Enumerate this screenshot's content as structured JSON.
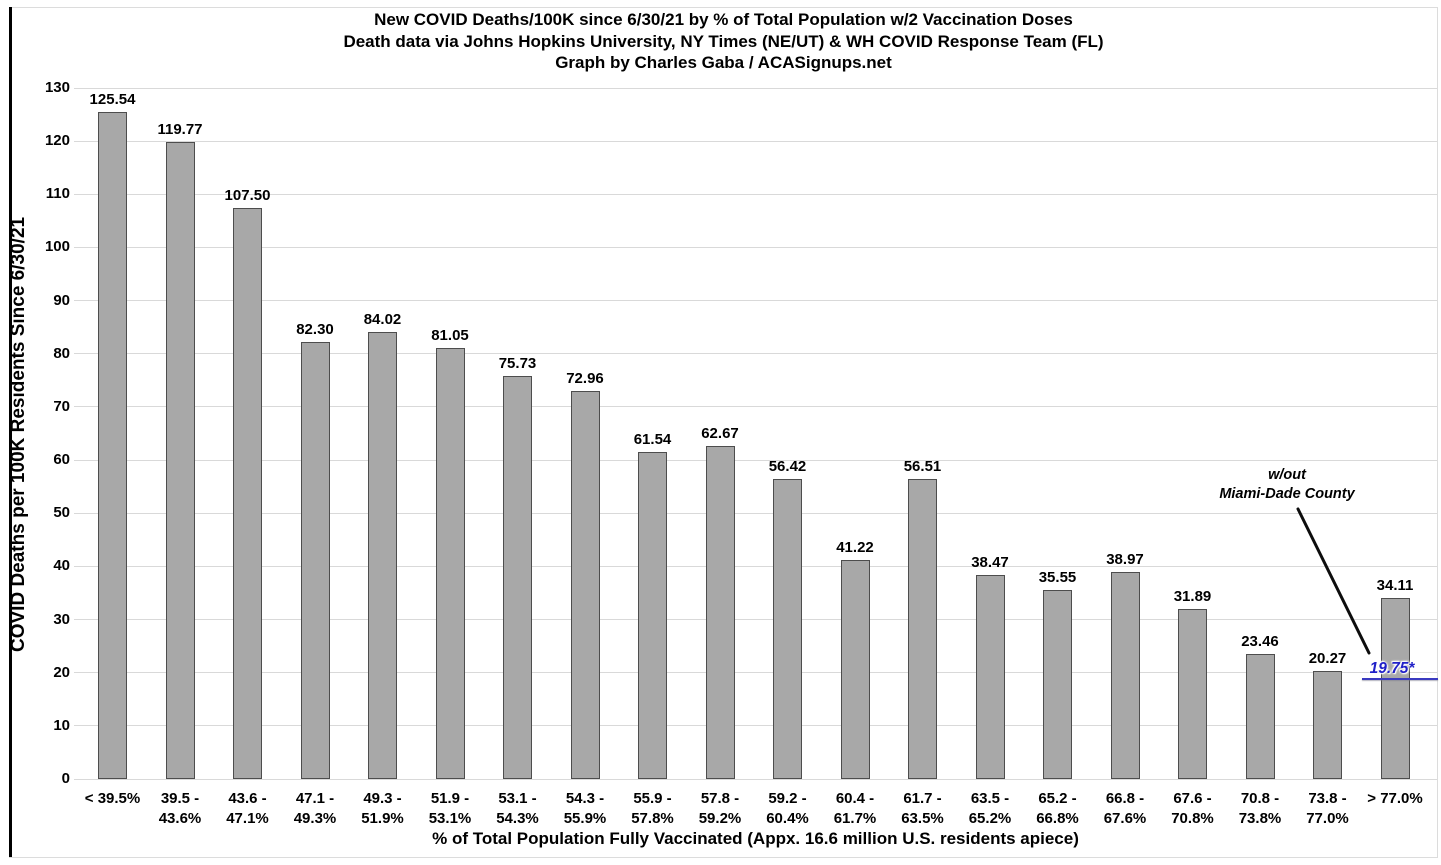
{
  "chart_data": {
    "type": "bar",
    "title_lines": [
      "New COVID Deaths/100K since 6/30/21 by % of Total Population w/2 Vaccination Doses",
      "Death data via Johns Hopkins University, NY Times (NE/UT) & WH COVID Response Team (FL)",
      "Graph by Charles Gaba / ACASignups.net"
    ],
    "ylabel": "COVID Deaths per 100K Residents Since 6/30/21",
    "xlabel": "% of Total Population Fully Vaccinated (Appx. 16.6 million U.S. residents apiece)",
    "ylim": [
      0,
      130
    ],
    "ytick_step": 10,
    "grid": true,
    "legend": "none",
    "categories": [
      "< 39.5%",
      "39.5 - 43.6%",
      "43.6 - 47.1%",
      "47.1 - 49.3%",
      "49.3 - 51.9%",
      "51.9 - 53.1%",
      "53.1 - 54.3%",
      "54.3 - 55.9%",
      "55.9 - 57.8%",
      "57.8 - 59.2%",
      "59.2 - 60.4%",
      "60.4 - 61.7%",
      "61.7 - 63.5%",
      "63.5 - 65.2%",
      "65.2 - 66.8%",
      "66.8 - 67.6%",
      "67.6 - 70.8%",
      "70.8 - 73.8%",
      "73.8 - 77.0%",
      "> 77.0%"
    ],
    "category_label_lines": [
      [
        "< 39.5%"
      ],
      [
        "39.5 -",
        "43.6%"
      ],
      [
        "43.6 -",
        "47.1%"
      ],
      [
        "47.1 -",
        "49.3%"
      ],
      [
        "49.3 -",
        "51.9%"
      ],
      [
        "51.9 -",
        "53.1%"
      ],
      [
        "53.1 -",
        "54.3%"
      ],
      [
        "54.3 -",
        "55.9%"
      ],
      [
        "55.9 -",
        "57.8%"
      ],
      [
        "57.8 -",
        "59.2%"
      ],
      [
        "59.2 -",
        "60.4%"
      ],
      [
        "60.4 -",
        "61.7%"
      ],
      [
        "61.7 -",
        "63.5%"
      ],
      [
        "63.5 -",
        "65.2%"
      ],
      [
        "65.2 -",
        "66.8%"
      ],
      [
        "66.8 -",
        "67.6%"
      ],
      [
        "67.6 -",
        "70.8%"
      ],
      [
        "70.8 -",
        "73.8%"
      ],
      [
        "73.8 -",
        "77.0%"
      ],
      [
        "> 77.0%"
      ]
    ],
    "values": [
      125.54,
      119.77,
      107.5,
      82.3,
      84.02,
      81.05,
      75.73,
      72.96,
      61.54,
      62.67,
      56.42,
      41.22,
      56.51,
      38.47,
      35.55,
      38.97,
      31.89,
      23.46,
      20.27,
      34.11
    ],
    "value_labels": [
      "125.54",
      "119.77",
      "107.50",
      "82.30",
      "84.02",
      "81.05",
      "75.73",
      "72.96",
      "61.54",
      "62.67",
      "56.42",
      "41.22",
      "56.51",
      "38.47",
      "35.55",
      "38.97",
      "31.89",
      "23.46",
      "20.27",
      "34.11"
    ],
    "annotation": {
      "text_line1": "w/out",
      "text_line2": "Miami-Dade County",
      "value_label": "19.75*",
      "value_without": 19.75,
      "applies_to_category": "> 77.0%"
    },
    "colors": {
      "background": "#ffffff",
      "bar_fill": "#a8a8a8",
      "bar_border": "#4d4d4d",
      "grid": "#d9d9d9",
      "text": "#000000",
      "annotation_value": "#2020c8"
    }
  }
}
